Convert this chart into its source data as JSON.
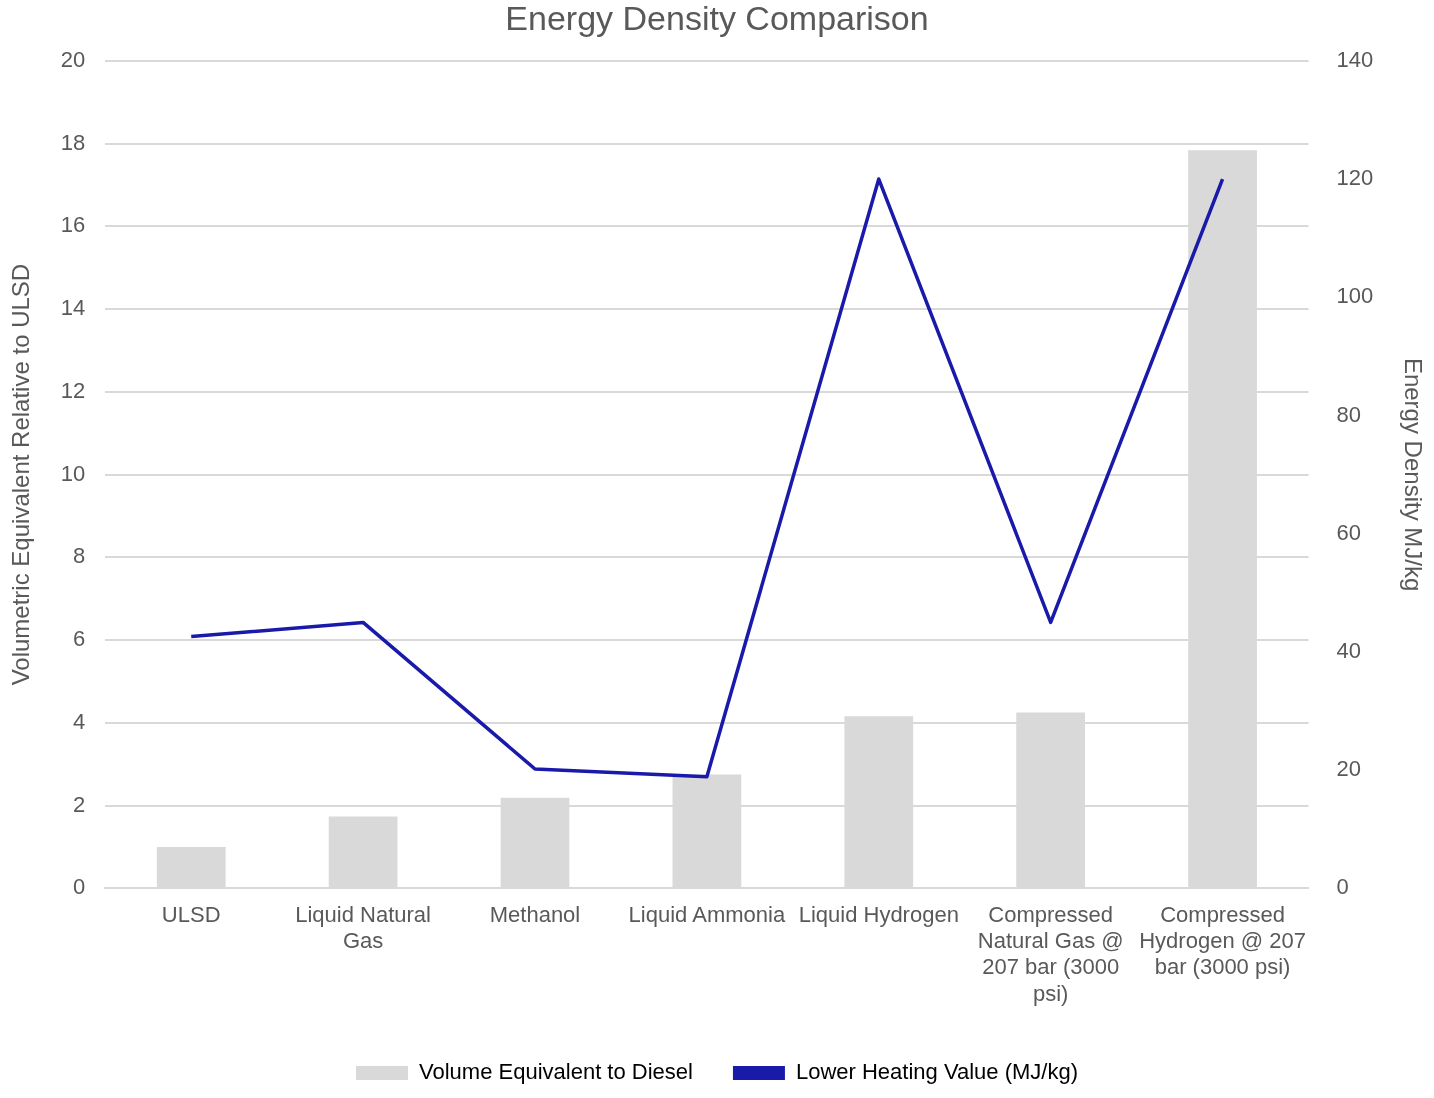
{
  "chart_data": {
    "type": "bar",
    "title": "Energy Density Comparison",
    "ylabel": "Volumetric Equivalent Relative to ULSD",
    "y2label": "Energy Density MJ/kg",
    "categories": [
      "ULSD",
      "Liquid Natural Gas",
      "Methanol",
      "Liquid Ammonia",
      "Liquid Hydrogen",
      "Compressed Natural Gas @ 207 bar (3000 psi)",
      "Compressed Hydrogen @ 207 bar (3000 psi)"
    ],
    "series": [
      {
        "name": "Volume Equivalent to Diesel",
        "color": "#d9d9d9",
        "values": [
          1,
          1.74,
          2.19,
          2.75,
          4.16,
          4.25,
          17.84
        ]
      },
      {
        "name": "Lower Heating Value (MJ/kg)",
        "type": "line",
        "axis": "y2",
        "color": "#1a1aaa",
        "values": [
          42.6,
          45,
          20.2,
          18.9,
          120,
          45,
          120
        ]
      }
    ],
    "ylim": [
      0,
      20
    ],
    "yticks": [
      0,
      2,
      4,
      6,
      8,
      10,
      12,
      14,
      16,
      18,
      20
    ],
    "y2lim": [
      0,
      140
    ],
    "y2ticks": [
      0,
      20,
      40,
      60,
      80,
      100,
      120,
      140
    ],
    "grid": "y",
    "legend": "bottom",
    "marker": "none",
    "line_style": "solid"
  }
}
